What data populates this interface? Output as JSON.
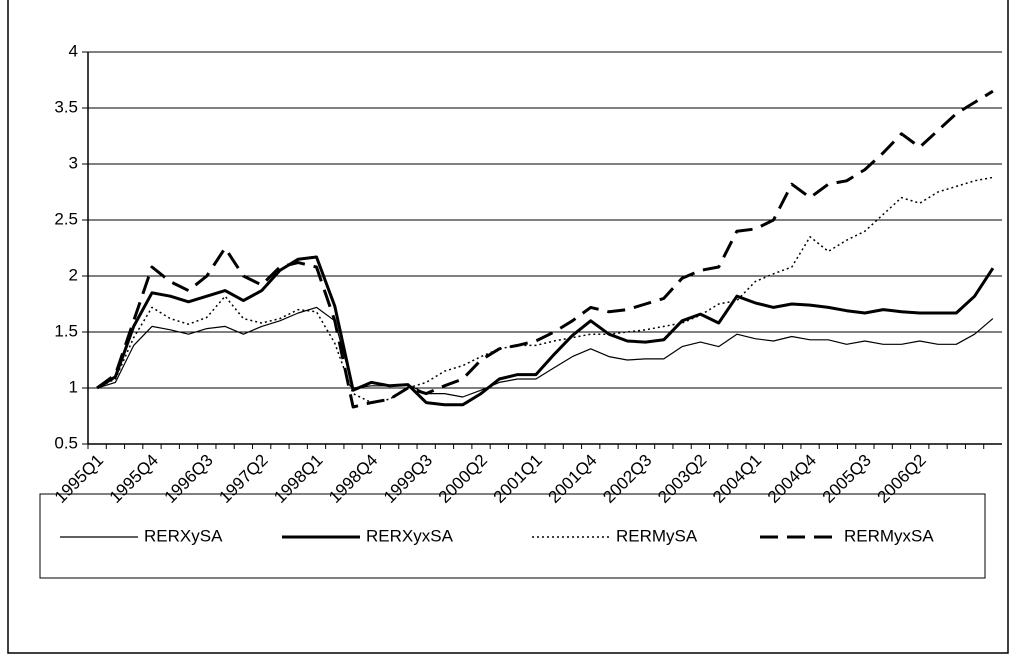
{
  "chart_data": {
    "type": "line",
    "categories": [
      "1995Q1",
      null,
      null,
      "1995Q4",
      null,
      null,
      "1996Q3",
      null,
      null,
      "1997Q2",
      null,
      null,
      "1998Q1",
      null,
      null,
      "1998Q4",
      null,
      null,
      "1999Q3",
      null,
      null,
      "2000Q2",
      null,
      null,
      "2001Q1",
      null,
      null,
      "2001Q4",
      null,
      null,
      "2002Q3",
      null,
      null,
      "2003Q2",
      null,
      null,
      "2004Q1",
      null,
      null,
      "2004Q4",
      null,
      null,
      "2005Q3",
      null,
      null,
      "2006Q2",
      null,
      null,
      null,
      null
    ],
    "series": [
      {
        "name": "RERXySA",
        "color": "#000000",
        "style": "thin",
        "values": [
          1,
          1.05,
          1.38,
          1.55,
          1.52,
          1.48,
          1.53,
          1.55,
          1.48,
          1.55,
          1.6,
          1.67,
          1.72,
          1.6,
          1.0,
          1.02,
          1.02,
          1.03,
          0.95,
          0.95,
          0.92,
          0.98,
          1.05,
          1.08,
          1.08,
          1.18,
          1.28,
          1.35,
          1.28,
          1.25,
          1.26,
          1.26,
          1.37,
          1.41,
          1.37,
          1.48,
          1.44,
          1.42,
          1.46,
          1.43,
          1.43,
          1.39,
          1.42,
          1.39,
          1.39,
          1.42,
          1.39,
          1.39,
          1.48,
          1.62
        ]
      },
      {
        "name": "RERXyxSA",
        "color": "#000000",
        "style": "thick",
        "values": [
          1,
          1.1,
          1.55,
          1.85,
          1.82,
          1.77,
          1.82,
          1.87,
          1.78,
          1.87,
          2.05,
          2.15,
          2.17,
          1.73,
          0.98,
          1.05,
          1.02,
          1.03,
          0.87,
          0.85,
          0.85,
          0.95,
          1.08,
          1.12,
          1.12,
          1.3,
          1.47,
          1.6,
          1.48,
          1.42,
          1.41,
          1.43,
          1.6,
          1.66,
          1.58,
          1.82,
          1.76,
          1.72,
          1.75,
          1.74,
          1.72,
          1.69,
          1.67,
          1.7,
          1.68,
          1.67,
          1.67,
          1.67,
          1.82,
          2.07
        ]
      },
      {
        "name": "RERMySA",
        "color": "#000000",
        "style": "dotted",
        "values": [
          1,
          1.08,
          1.45,
          1.72,
          1.62,
          1.57,
          1.63,
          1.82,
          1.62,
          1.58,
          1.62,
          1.7,
          1.68,
          1.4,
          0.95,
          0.87,
          0.9,
          1.0,
          1.05,
          1.15,
          1.2,
          1.28,
          1.35,
          1.38,
          1.38,
          1.42,
          1.45,
          1.48,
          1.48,
          1.5,
          1.52,
          1.55,
          1.58,
          1.65,
          1.75,
          1.78,
          1.95,
          2.02,
          2.08,
          2.35,
          2.22,
          2.32,
          2.4,
          2.55,
          2.7,
          2.65,
          2.75,
          2.8,
          2.85,
          2.88
        ]
      },
      {
        "name": "RERMyxSA",
        "color": "#000000",
        "style": "dashed",
        "values": [
          1,
          1.12,
          1.6,
          2.08,
          1.95,
          1.87,
          2.0,
          2.25,
          2.0,
          1.92,
          2.08,
          2.12,
          2.08,
          1.6,
          0.83,
          0.87,
          0.9,
          1.0,
          0.95,
          1.02,
          1.08,
          1.25,
          1.35,
          1.38,
          1.42,
          1.5,
          1.6,
          1.72,
          1.68,
          1.7,
          1.75,
          1.8,
          1.98,
          2.05,
          2.08,
          2.4,
          2.42,
          2.5,
          2.82,
          2.7,
          2.82,
          2.85,
          2.95,
          3.1,
          3.27,
          3.15,
          3.3,
          3.45,
          3.55,
          3.65
        ]
      }
    ],
    "ylim": [
      0.5,
      4
    ],
    "yticks": [
      0.5,
      1,
      1.5,
      2,
      2.5,
      3,
      3.5,
      4
    ],
    "grid": true,
    "legend": "bottom"
  }
}
